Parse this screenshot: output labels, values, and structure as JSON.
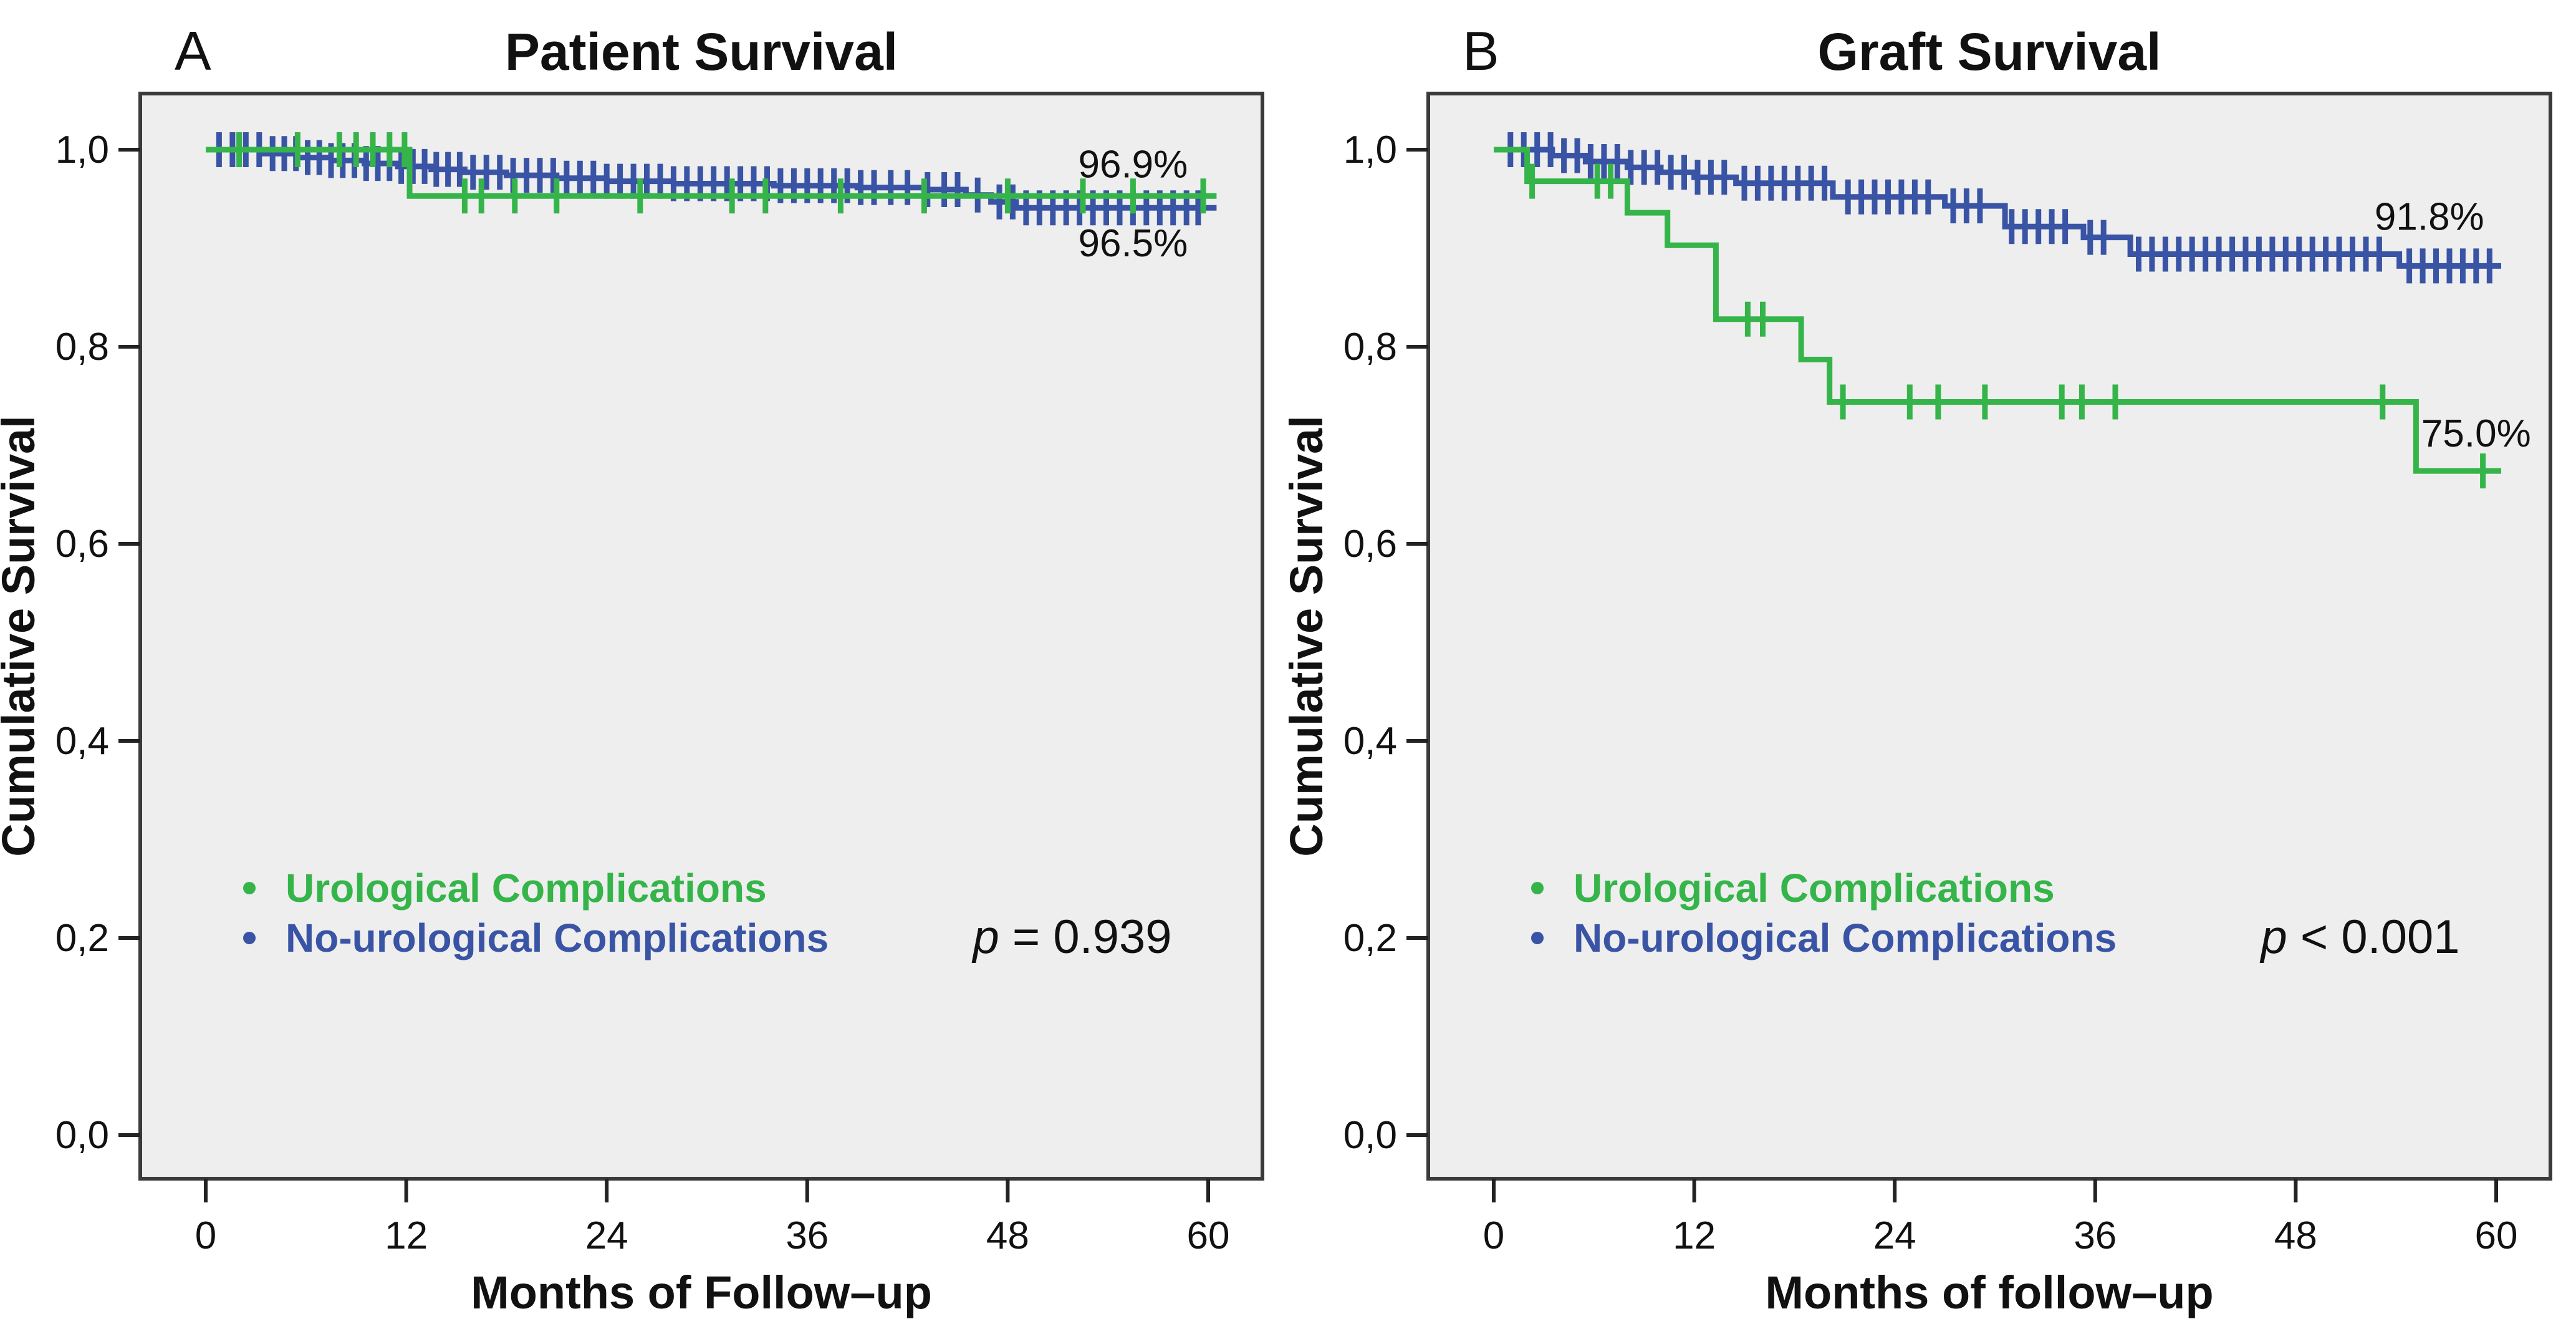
{
  "figure": {
    "background": "#ffffff",
    "plot_background": "#eeeeee",
    "frame_color": "#3a3a3a",
    "tick_color": "#222222",
    "text_color": "#111111",
    "green": "#35b44a",
    "blue": "#3a54a5"
  },
  "chart_data": [
    {
      "type": "line",
      "kind": "kaplan-meier-step",
      "panel_label": "A",
      "title": "Patient Survival",
      "xlabel": "Months of Follow–up",
      "ylabel": "Cumulative Survival",
      "xlim": [
        0,
        60
      ],
      "ylim": [
        0.0,
        1.0
      ],
      "grid": false,
      "x_ticks": [
        0,
        12,
        24,
        36,
        48,
        60
      ],
      "y_ticks": [
        {
          "value": 1.0,
          "label": "1,0"
        },
        {
          "value": 0.8,
          "label": "0,8"
        },
        {
          "value": 0.6,
          "label": "0,6"
        },
        {
          "value": 0.4,
          "label": "0,4"
        },
        {
          "value": 0.2,
          "label": "0,2"
        },
        {
          "value": 0.0,
          "label": "0,0"
        }
      ],
      "legend": {
        "position": "lower-left",
        "items": [
          {
            "label": "Urological Complications",
            "color": "#35b44a"
          },
          {
            "label": "No-urological Complications",
            "color": "#3a54a5"
          }
        ]
      },
      "p_value": {
        "prefix": "p",
        "text": " = 0.939"
      },
      "annotations": [
        {
          "text": "96.9%",
          "x": 55.5,
          "y": 0.985
        },
        {
          "text": "96.5%",
          "x": 55.5,
          "y": 0.905
        }
      ],
      "series": [
        {
          "name": "No-urological Complications",
          "color": "#3a54a5",
          "end_x": 60.5,
          "steps": [
            [
              0,
              1.0
            ],
            [
              3.5,
              0.996
            ],
            [
              5.5,
              0.992
            ],
            [
              7.5,
              0.989
            ],
            [
              9.5,
              0.986
            ],
            [
              11.5,
              0.983
            ],
            [
              13.5,
              0.98
            ],
            [
              15.5,
              0.977
            ],
            [
              18,
              0.974
            ],
            [
              21,
              0.971
            ],
            [
              24,
              0.968
            ],
            [
              28,
              0.9655
            ],
            [
              34,
              0.9635
            ],
            [
              39,
              0.9615
            ],
            [
              43,
              0.9595
            ],
            [
              45.5,
              0.954
            ],
            [
              47,
              0.947
            ],
            [
              48.5,
              0.941
            ]
          ],
          "censor_x": [
            0.8,
            1.6,
            2.4,
            3.2,
            4,
            4.7,
            5.4,
            6.1,
            6.8,
            7.5,
            8.2,
            8.9,
            9.6,
            10.3,
            11,
            11.7,
            12.4,
            13.1,
            13.8,
            14.5,
            15.2,
            16,
            16.8,
            17.6,
            18.4,
            19.2,
            20,
            20.8,
            21.6,
            22.4,
            23.2,
            24,
            24.8,
            25.6,
            26.4,
            27.2,
            28,
            28.8,
            29.6,
            30.4,
            31.2,
            32,
            32.8,
            33.6,
            34.4,
            35.2,
            36,
            36.8,
            37.6,
            38.4,
            39.2,
            40,
            41,
            42,
            43.2,
            44.2,
            45,
            46.2,
            47.5,
            48.3,
            49.1,
            49.9,
            50.7,
            51.5,
            52.3,
            53.1,
            53.9,
            54.7,
            55.5,
            56.3,
            57.1,
            57.9,
            58.7,
            59.4
          ]
        },
        {
          "name": "Urological Complications",
          "color": "#35b44a",
          "end_x": 60.5,
          "steps": [
            [
              0,
              1.0
            ],
            [
              12.2,
              0.953
            ]
          ],
          "censor_x": [
            2,
            5.5,
            8,
            9,
            10,
            11,
            11.9,
            15.5,
            16.5,
            18.5,
            21,
            26,
            31.5,
            33.5,
            38,
            43,
            48,
            52.5,
            55.5,
            59.7
          ]
        }
      ]
    },
    {
      "type": "line",
      "kind": "kaplan-meier-step",
      "panel_label": "B",
      "title": "Graft Survival",
      "xlabel": "Months of follow–up",
      "ylabel": "Cumulative Survival",
      "xlim": [
        0,
        60
      ],
      "ylim": [
        0.0,
        1.0
      ],
      "grid": false,
      "x_ticks": [
        0,
        12,
        24,
        36,
        48,
        60
      ],
      "y_ticks": [
        {
          "value": 1.0,
          "label": "1,0"
        },
        {
          "value": 0.8,
          "label": "0,8"
        },
        {
          "value": 0.6,
          "label": "0,6"
        },
        {
          "value": 0.4,
          "label": "0,4"
        },
        {
          "value": 0.2,
          "label": "0,2"
        },
        {
          "value": 0.0,
          "label": "0,0"
        }
      ],
      "legend": {
        "position": "lower-left",
        "items": [
          {
            "label": "Urological Complications",
            "color": "#35b44a"
          },
          {
            "label": "No-urological Complications",
            "color": "#3a54a5"
          }
        ]
      },
      "p_value": {
        "prefix": "p",
        "text": " < 0.001"
      },
      "annotations": [
        {
          "text": "91.8%",
          "x": 56.0,
          "y": 0.932
        },
        {
          "text": "75.0%",
          "x": 58.8,
          "y": 0.712
        }
      ],
      "series": [
        {
          "name": "No-urological Complications",
          "color": "#3a54a5",
          "end_x": 60.3,
          "steps": [
            [
              0,
              1.0
            ],
            [
              3.5,
              0.994
            ],
            [
              5.5,
              0.988
            ],
            [
              8,
              0.982
            ],
            [
              10,
              0.977
            ],
            [
              12,
              0.972
            ],
            [
              14.5,
              0.966
            ],
            [
              20.3,
              0.952
            ],
            [
              27,
              0.943
            ],
            [
              30.6,
              0.922
            ],
            [
              35.3,
              0.911
            ],
            [
              38.1,
              0.894
            ],
            [
              54.2,
              0.882
            ]
          ],
          "censor_x": [
            1,
            1.8,
            2.6,
            3.4,
            4.2,
            5,
            5.8,
            6.6,
            7.4,
            8.2,
            9,
            9.8,
            10.6,
            11.4,
            12.2,
            13,
            13.8,
            15,
            15.8,
            16.6,
            17.4,
            18.2,
            19,
            19.8,
            21.2,
            22,
            22.8,
            23.6,
            24.4,
            25.2,
            26,
            27.5,
            28.3,
            29.1,
            31,
            31.8,
            32.6,
            33.4,
            34.2,
            35.7,
            36.5,
            38.6,
            39.4,
            40.2,
            41,
            41.8,
            42.6,
            43.4,
            44.2,
            45,
            45.8,
            46.6,
            47.4,
            48.2,
            49,
            49.8,
            50.6,
            51.4,
            52.2,
            53,
            54.8,
            55.6,
            56.4,
            57.2,
            58,
            58.8,
            59.6
          ]
        },
        {
          "name": "Urological Complications",
          "color": "#35b44a",
          "end_x": 60.3,
          "steps": [
            [
              0,
              1.0
            ],
            [
              2,
              0.968
            ],
            [
              8,
              0.936
            ],
            [
              10.4,
              0.903
            ],
            [
              13.3,
              0.828
            ],
            [
              18.4,
              0.787
            ],
            [
              20.1,
              0.744
            ],
            [
              55.2,
              0.674
            ]
          ],
          "censor_x": [
            2.3,
            6.2,
            7.0,
            15.2,
            16.1,
            20.9,
            24.9,
            26.6,
            29.4,
            34,
            35.2,
            37.2,
            53.2,
            59.2
          ]
        }
      ]
    }
  ]
}
